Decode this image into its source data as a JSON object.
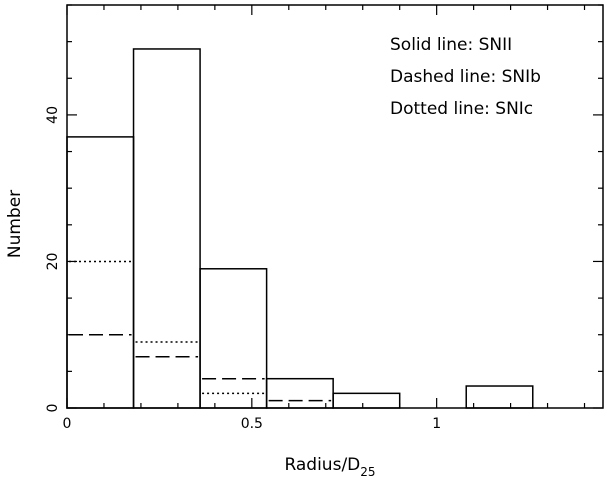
{
  "chart_data": {
    "type": "histogram",
    "xlabel": "Radius/D",
    "xlabel_sub": "25",
    "ylabel": "Number",
    "xlim": [
      0,
      1.45
    ],
    "ylim": [
      0,
      55
    ],
    "x_ticks": [
      {
        "value": 0,
        "label": "0"
      },
      {
        "value": 0.5,
        "label": "0.5"
      },
      {
        "value": 1,
        "label": "1"
      }
    ],
    "y_ticks": [
      {
        "value": 0,
        "label": "0"
      },
      {
        "value": 20,
        "label": "20"
      },
      {
        "value": 40,
        "label": "40"
      }
    ],
    "bin_edges": [
      0,
      0.18,
      0.36,
      0.54,
      0.72,
      0.9,
      1.08,
      1.26
    ],
    "series": [
      {
        "name": "SNII",
        "style": "solid",
        "values": [
          37,
          49,
          19,
          4,
          2,
          0,
          3
        ]
      },
      {
        "name": "SNIb",
        "style": "dashed",
        "values": [
          10,
          7,
          4,
          1,
          0,
          0,
          0
        ]
      },
      {
        "name": "SNIc",
        "style": "dotted",
        "values": [
          20,
          9,
          2,
          0,
          0,
          0,
          0
        ]
      }
    ],
    "legend": [
      "Solid line: SNII",
      "Dashed line: SNIb",
      "Dotted line: SNIc"
    ],
    "legend_position": "top-right",
    "grid": false
  }
}
